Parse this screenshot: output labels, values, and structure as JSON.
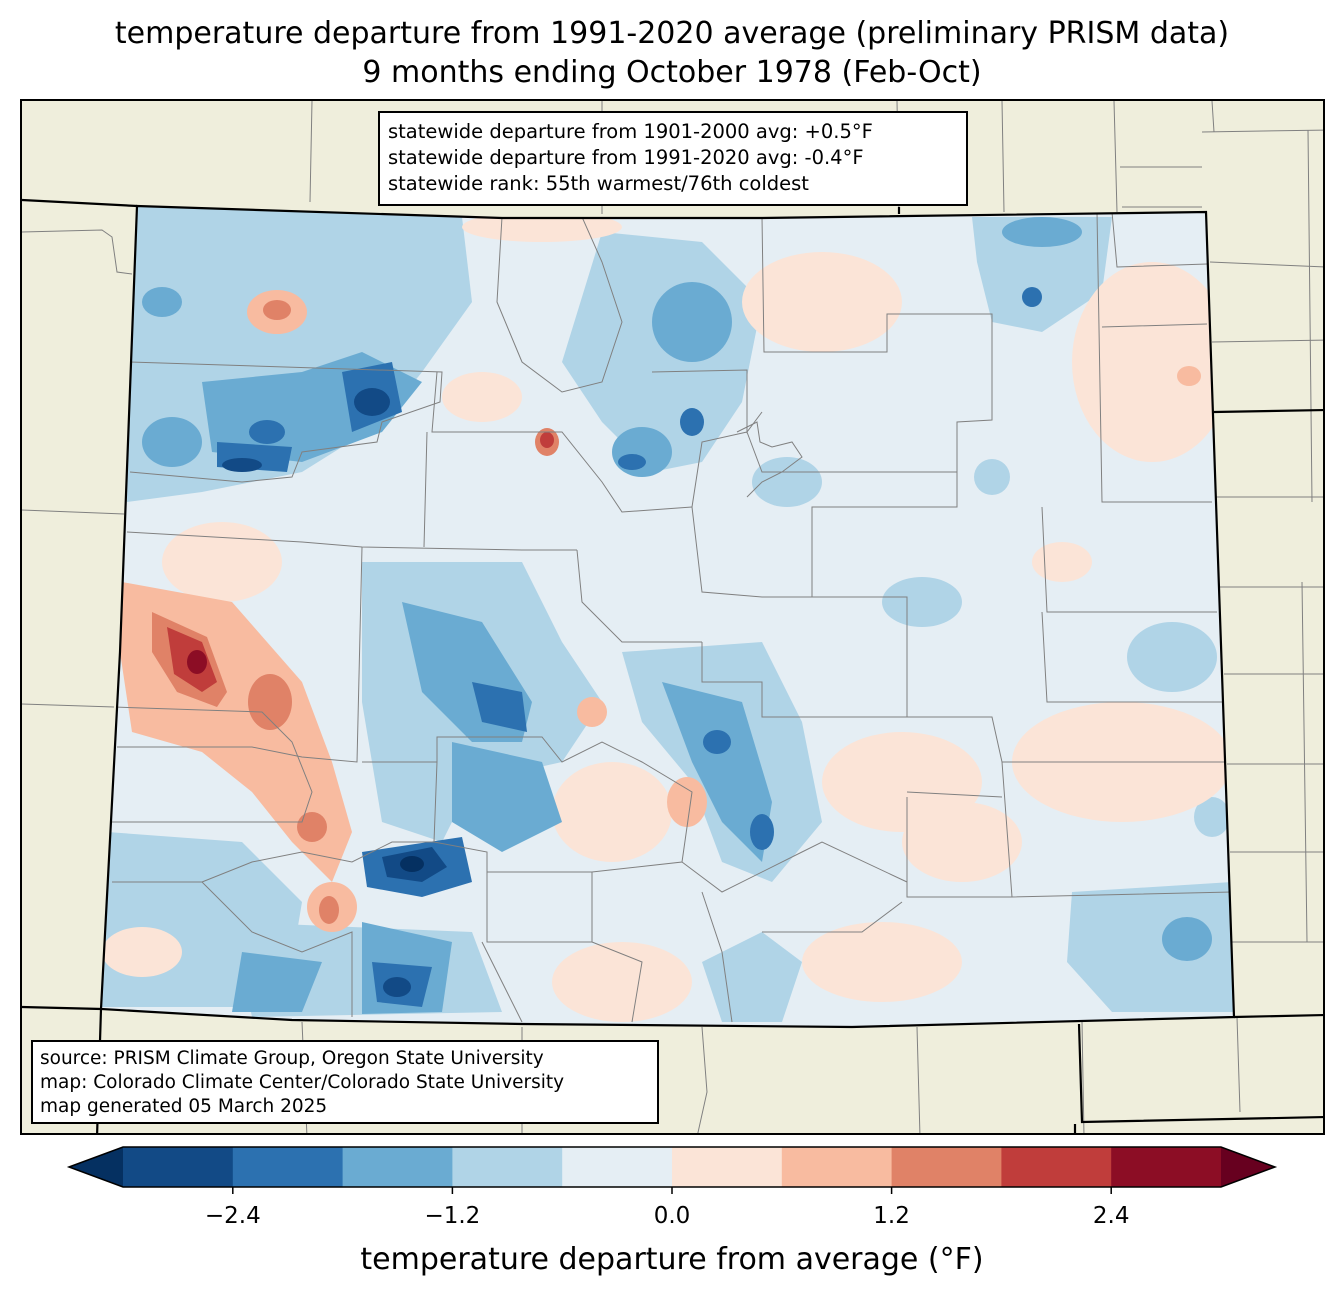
{
  "title": {
    "line1": "temperature departure from 1991-2020 average (preliminary PRISM data)",
    "line2": "9 months ending October 1978 (Feb-Oct)"
  },
  "stats": {
    "line1": "statewide departure from 1901-2000 avg: +0.5°F",
    "line2": "statewide departure from 1991-2020 avg: -0.4°F",
    "line3": "statewide rank: 55th warmest/76th coldest"
  },
  "source": {
    "line1": "source: PRISM Climate Group, Oregon State University",
    "line2": "map: Colorado Climate Center/Colorado State University",
    "line3": "map generated 05 March 2025"
  },
  "colorbar": {
    "label": "temperature departure from average (°F)",
    "bounds": [
      -3.0,
      3.0
    ],
    "step": 0.6,
    "ticks": [
      {
        "value": -2.4,
        "text": "−2.4"
      },
      {
        "value": -1.2,
        "text": "−1.2"
      },
      {
        "value": 0.0,
        "text": "0.0"
      },
      {
        "value": 1.2,
        "text": "1.2"
      },
      {
        "value": 2.4,
        "text": "2.4"
      }
    ],
    "colors": [
      "#124a86",
      "#2c71b0",
      "#6aabd2",
      "#b0d4e7",
      "#e5eef4",
      "#fbe4d7",
      "#f8bba0",
      "#e08267",
      "#c03d3b",
      "#8c0d25"
    ],
    "under_color": "#053061",
    "over_color": "#67001f"
  },
  "colors": {
    "land": "#efeedc",
    "state_border": "#000000",
    "county_border": "#808080"
  }
}
